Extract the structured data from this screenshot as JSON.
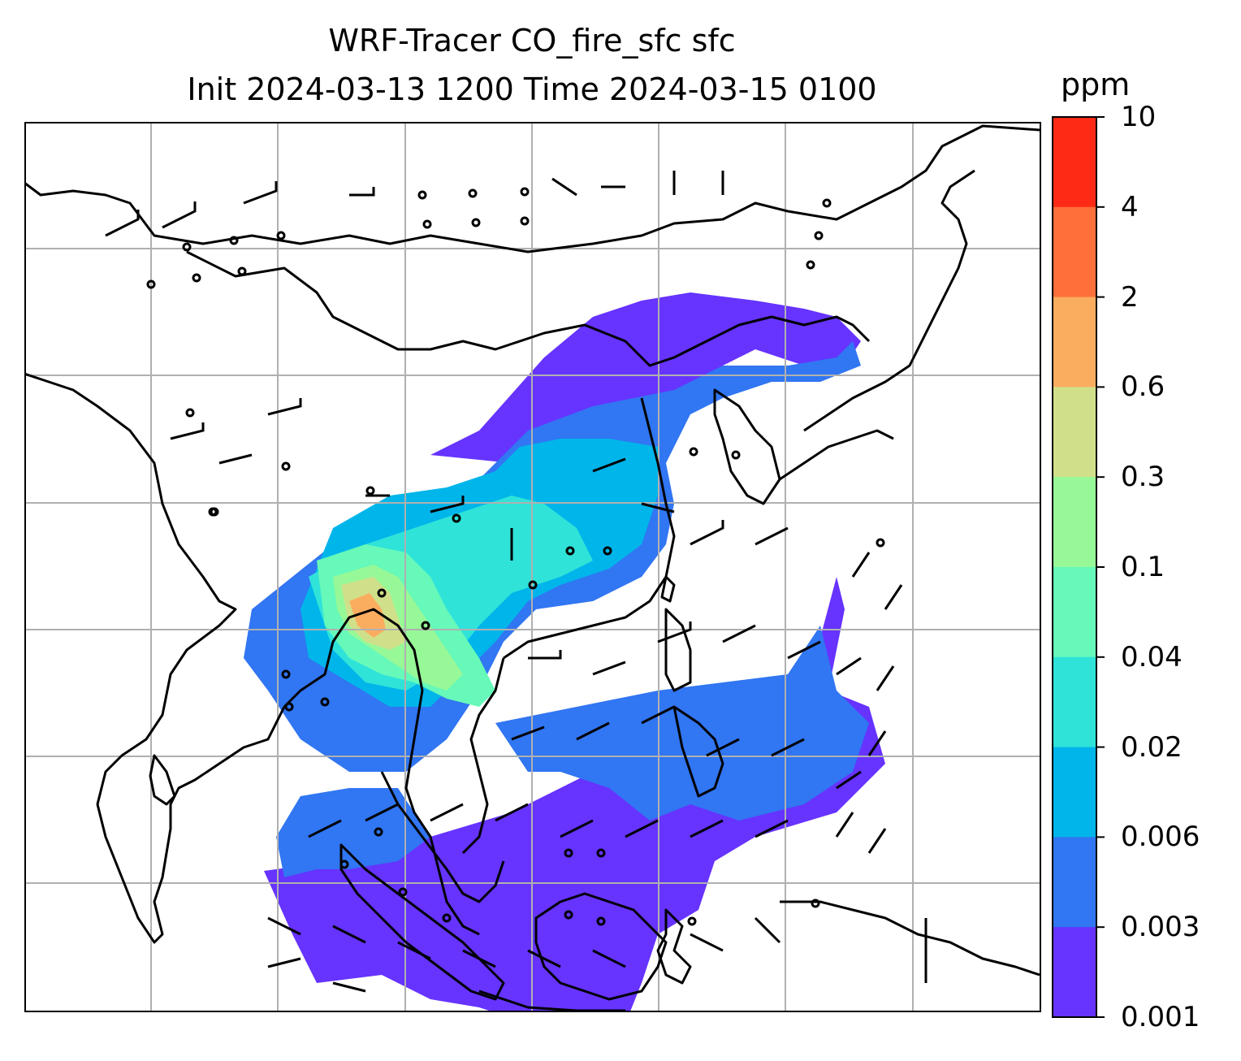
{
  "title": {
    "line1": "WRF-Tracer CO_fire_sfc sfc",
    "line2": "Init 2024-03-13 1200 Time 2024-03-15 0100"
  },
  "colorbar": {
    "unit": "ppm",
    "ticks": [
      "10",
      "4",
      "2",
      "0.6",
      "0.3",
      "0.1",
      "0.04",
      "0.02",
      "0.006",
      "0.003",
      "0.001"
    ],
    "colors": [
      "#ff2a16",
      "#ff6f3a",
      "#fbad5f",
      "#d0e08a",
      "#97f897",
      "#66f9b9",
      "#2fe3d9",
      "#00b5ea",
      "#3176f2",
      "#6633ff"
    ]
  },
  "map": {
    "background": "#ffffff",
    "gridline_color": "#b0b0b0",
    "coastline_color": "#000000"
  }
}
